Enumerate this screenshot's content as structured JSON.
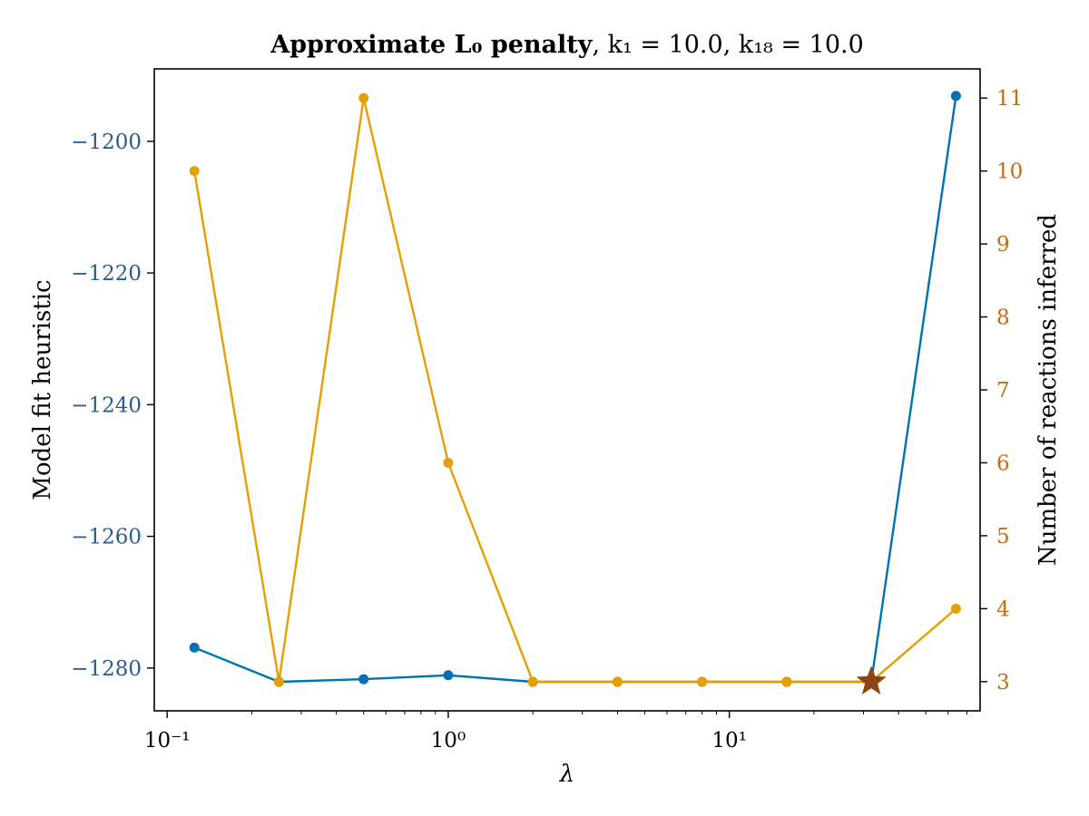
{
  "chart_data": {
    "type": "line",
    "title": {
      "bold_part": "Approximate L₀ penalty",
      "rest_part": ", k₁ = 10.0, k₁₈ = 10.0"
    },
    "xlabel": "λ",
    "x_scale": "log",
    "xlim": [
      0.09,
      78
    ],
    "x_ticks": [
      {
        "value": 0.1,
        "label": "10⁻¹"
      },
      {
        "value": 1,
        "label": "10⁰"
      },
      {
        "value": 10,
        "label": "10¹"
      }
    ],
    "x": [
      0.125,
      0.25,
      0.5,
      1,
      2,
      4,
      8,
      16,
      32,
      64
    ],
    "y_left": {
      "label": "Model fit heuristic",
      "ylim": [
        -1286.5,
        -1189
      ],
      "ticks": [
        -1200,
        -1220,
        -1240,
        -1260,
        -1280
      ],
      "tick_labels": [
        "−1200",
        "−1220",
        "−1240",
        "−1260",
        "−1280"
      ],
      "color": "#2a5d8f"
    },
    "y_right": {
      "label": "Number of reactions inferred",
      "ylim": [
        2.6,
        11.4
      ],
      "ticks": [
        3,
        4,
        5,
        6,
        7,
        8,
        9,
        10,
        11
      ],
      "tick_labels": [
        "3",
        "4",
        "5",
        "6",
        "7",
        "8",
        "9",
        "10",
        "11"
      ],
      "color": "#c86a14"
    },
    "series": [
      {
        "axis": "left",
        "color": "#0072b2",
        "values": [
          -1276.9,
          -1282.1,
          -1281.7,
          -1281.1,
          -1282.1,
          -1282.1,
          -1282.1,
          -1282.1,
          -1282.1,
          -1193.1
        ]
      },
      {
        "axis": "right",
        "color": "#e69f00",
        "values": [
          10,
          3,
          11,
          6,
          3,
          3,
          3,
          3,
          3,
          4
        ]
      }
    ],
    "highlight": {
      "x": 32,
      "y_right": 3,
      "marker": "star",
      "color": "#8b4513"
    },
    "grid": false
  }
}
